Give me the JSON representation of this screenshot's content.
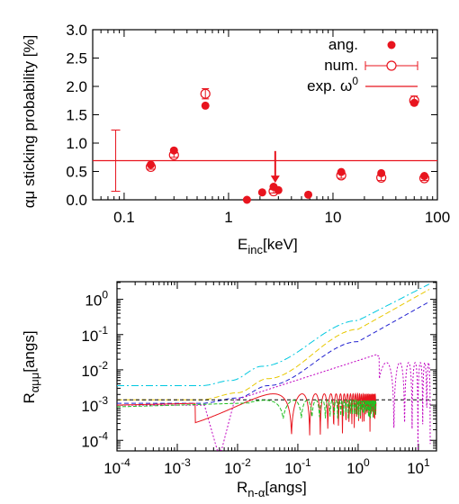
{
  "chart_data": [
    {
      "type": "scatter",
      "ylabel": "αμ sticking probability [%]",
      "xlabel_main": "E",
      "xlabel_sub": "inc",
      "xlabel_unit": "[keV]",
      "xscale": "log",
      "xlim": [
        0.05,
        100
      ],
      "ylim": [
        0.0,
        3.0
      ],
      "x_ticks": [
        {
          "value": 0.1,
          "label": "0.1"
        },
        {
          "value": 1,
          "label": "1"
        },
        {
          "value": 10,
          "label": "10"
        },
        {
          "value": 100,
          "label": "100"
        }
      ],
      "y_ticks": [
        {
          "value": 0.0,
          "label": "0.0"
        },
        {
          "value": 0.5,
          "label": "0.5"
        },
        {
          "value": 1.0,
          "label": "1.0"
        },
        {
          "value": 1.5,
          "label": "1.5"
        },
        {
          "value": 2.0,
          "label": "2.0"
        },
        {
          "value": 2.5,
          "label": "2.5"
        },
        {
          "value": 3.0,
          "label": "3.0"
        }
      ],
      "legend_position": "top-right",
      "series": [
        {
          "name": "ang.",
          "marker": "filled-circle",
          "color": "#e8141e",
          "x": [
            0.18,
            0.3,
            0.6,
            1.5,
            2.1,
            2.7,
            3.0,
            5.8,
            12,
            29,
            60,
            75
          ],
          "y": [
            0.62,
            0.87,
            1.66,
            0.0,
            0.13,
            0.23,
            0.17,
            0.09,
            0.49,
            0.47,
            1.71,
            0.42
          ]
        },
        {
          "name": "num.",
          "marker": "open-circle",
          "color": "#e8141e",
          "x": [
            0.18,
            0.3,
            0.6,
            2.7,
            12,
            29,
            60,
            75
          ],
          "y": [
            0.58,
            0.79,
            1.87,
            0.15,
            0.43,
            0.39,
            1.75,
            0.38
          ],
          "err": [
            0.04,
            0.04,
            0.09,
            0.03,
            0.05,
            0.05,
            0.08,
            0.04
          ]
        },
        {
          "name": "exp. ω",
          "sup": "0",
          "marker": "line",
          "color": "#e8141e",
          "y": 0.69,
          "point_x": 0.083,
          "err": 0.54
        }
      ],
      "arrow": {
        "x": 2.8,
        "y_from": 0.86,
        "y_to": 0.3
      }
    },
    {
      "type": "line",
      "ylabel_main": "R",
      "ylabel_sub": "αμμ",
      "ylabel_unit": "[angs]",
      "xlabel_main": "R",
      "xlabel_sub": "n-α",
      "xlabel_unit": "[angs]",
      "xscale": "log",
      "yscale": "log",
      "xlim_exp": [
        -4,
        1.3
      ],
      "ylim_exp": [
        -4.3,
        0.5
      ],
      "x_ticks": [
        {
          "exp": -4,
          "base": "10",
          "sup": "-4"
        },
        {
          "exp": -3,
          "base": "10",
          "sup": "-3"
        },
        {
          "exp": -2,
          "base": "10",
          "sup": "-2"
        },
        {
          "exp": -1,
          "base": "10",
          "sup": "-1"
        },
        {
          "exp": 0,
          "base": "10",
          "sup": "0"
        },
        {
          "exp": 1,
          "base": "10",
          "sup": "1"
        }
      ],
      "y_ticks": [
        {
          "exp": -4,
          "base": "10",
          "sup": "-4"
        },
        {
          "exp": -3,
          "base": "10",
          "sup": "-3"
        },
        {
          "exp": -2,
          "base": "10",
          "sup": "-2"
        },
        {
          "exp": -1,
          "base": "10",
          "sup": "-1"
        },
        {
          "exp": 0,
          "base": "10",
          "sup": "0"
        }
      ],
      "curves": [
        {
          "color": "#00c8e0",
          "dash": "8,3,2,3",
          "kind": "smooth",
          "x_exp": [
            -4,
            -2.6,
            -2.1,
            -1.6,
            0,
            1.2
          ],
          "y_exp": [
            -2.45,
            -2.45,
            -2.3,
            -1.9,
            -0.6,
            0.45
          ]
        },
        {
          "color": "#e8c800",
          "dash": "6,3",
          "kind": "smooth",
          "x_exp": [
            -4,
            -2.6,
            -2.0,
            -1.5,
            0,
            1.2
          ],
          "y_exp": [
            -2.85,
            -2.85,
            -2.65,
            -2.25,
            -0.85,
            0.3
          ]
        },
        {
          "color": "#2020d0",
          "dash": "5,3",
          "kind": "smooth",
          "x_exp": [
            -4,
            -2.6,
            -2.0,
            -1.5,
            0,
            1.2
          ],
          "y_exp": [
            -2.95,
            -2.95,
            -2.8,
            -2.45,
            -1.2,
            -0.05
          ]
        },
        {
          "color": "#000000",
          "dash": "4,3",
          "kind": "flat",
          "x_exp": [
            -4,
            1.3
          ],
          "y_exp": [
            -2.85,
            -2.85
          ]
        },
        {
          "color": "#c000c0",
          "dash": "2,2",
          "kind": "osc_dips",
          "x_exp": [
            -4,
            1.2
          ]
        },
        {
          "color": "#e8141e",
          "dash": "",
          "kind": "osc_red",
          "x_exp": [
            -4,
            0.3
          ]
        },
        {
          "color": "#20c020",
          "dash": "4,2",
          "kind": "osc_green",
          "x_exp": [
            -4,
            0.3
          ]
        }
      ]
    }
  ]
}
